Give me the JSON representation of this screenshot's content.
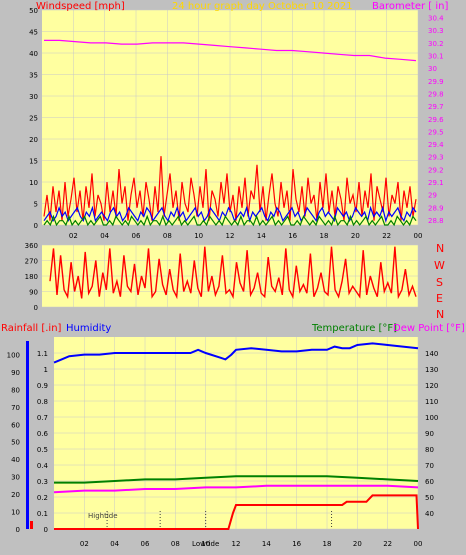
{
  "colors": {
    "background": "#c0c0c0",
    "plot_area": "#ffffa0",
    "grid": "#c8c8c8",
    "windspeed": "#ff0000",
    "gust": "#ff0000",
    "wind_avg": "#0000ff",
    "wind_low": "#008000",
    "barometer": "#ff00ff",
    "title": "#ffd700",
    "direction": "#ff0000",
    "humidity": "#0000ff",
    "temperature": "#008000",
    "dew_point": "#ff00ff",
    "rainfall": "#ff0000",
    "tide": "#404040"
  },
  "chart_data": [
    {
      "type": "line",
      "title": "24 hour graph day  October 10 2021",
      "ylabel_left": "Windspeed [mph]",
      "ylabel_right": "Barometer [ in]",
      "x_ticks": [
        "02",
        "04",
        "06",
        "08",
        "10",
        "12",
        "14",
        "16",
        "18",
        "20",
        "22",
        "00"
      ],
      "y_ticks_left": [
        "0",
        "5",
        "10",
        "15",
        "20",
        "25",
        "30",
        "35",
        "40",
        "45",
        "50"
      ],
      "y_ticks_right": [
        "28.8",
        "28.9",
        "29",
        "29.1",
        "29.2",
        "29.3",
        "29.4",
        "29.5",
        "29.6",
        "29.7",
        "29.8",
        "29.9",
        "30",
        "30.1",
        "30.2",
        "30.3",
        "30.4"
      ],
      "ylim_left": [
        0,
        50
      ],
      "ylim_right": [
        28.76,
        30.46
      ],
      "series": [
        {
          "key": "gust",
          "values": [
            2,
            7,
            1,
            9,
            3,
            8,
            1,
            10,
            2,
            6,
            11,
            3,
            8,
            1,
            9,
            4,
            12,
            2,
            7,
            5,
            1,
            10,
            3,
            8,
            2,
            13,
            5,
            9,
            1,
            7,
            11,
            4,
            8,
            2,
            10,
            6,
            1,
            9,
            3,
            16,
            2,
            7,
            12,
            4,
            8,
            1,
            10,
            5,
            3,
            11,
            7,
            2,
            9,
            4,
            13,
            1,
            8,
            6,
            2,
            10,
            5,
            12,
            3,
            7,
            1,
            9,
            4,
            11,
            2,
            8,
            6,
            14,
            3,
            9,
            1,
            7,
            12,
            5,
            2,
            10,
            4,
            8,
            1,
            13,
            6,
            3,
            9,
            2,
            11,
            5,
            7,
            1,
            10,
            4,
            12,
            3,
            8,
            2,
            9,
            6,
            1,
            11,
            5,
            7,
            3,
            10,
            2,
            8,
            4,
            12,
            1,
            9,
            6,
            3,
            11,
            2,
            7,
            5,
            10,
            1,
            8,
            4,
            9,
            2,
            6
          ]
        },
        {
          "key": "avg",
          "values": [
            1,
            2,
            3,
            1,
            2,
            4,
            2,
            3,
            1,
            2,
            3,
            4,
            2,
            1,
            3,
            2,
            4,
            1,
            2,
            3,
            2,
            1,
            3,
            4,
            2,
            3,
            1,
            2,
            4,
            3,
            2,
            1,
            3,
            2,
            4,
            3,
            1,
            2,
            3,
            4,
            2,
            1,
            3,
            2,
            4,
            2,
            3,
            1,
            2,
            3,
            4,
            2,
            3,
            1,
            2,
            4,
            3,
            2,
            1,
            3,
            2,
            4,
            3,
            1,
            2,
            3,
            2,
            4,
            1,
            3,
            2,
            3,
            4,
            2,
            1,
            3,
            2,
            4,
            3,
            1,
            2,
            3,
            4,
            2,
            3,
            1,
            2,
            4,
            3,
            2,
            1,
            3,
            4,
            2,
            3,
            2,
            1,
            4,
            3,
            2,
            3,
            1,
            2,
            4,
            3,
            2,
            3,
            1,
            4,
            2,
            3,
            2,
            4,
            1,
            3,
            2,
            3,
            4,
            2,
            1,
            3,
            2,
            4,
            3
          ]
        },
        {
          "key": "low",
          "values": [
            0,
            1,
            0,
            2,
            0,
            1,
            1,
            0,
            2,
            0,
            1,
            0,
            1,
            2,
            0,
            1,
            0,
            1,
            2,
            0,
            0,
            1,
            0,
            2,
            1,
            0,
            1,
            0,
            2,
            1,
            0,
            1,
            0,
            2,
            0,
            1,
            1,
            0,
            2,
            0,
            1,
            0,
            1,
            2,
            0,
            1,
            0,
            1,
            2,
            0,
            0,
            1,
            0,
            2,
            1,
            0,
            1,
            0,
            2,
            1,
            0,
            1,
            0,
            2,
            0,
            1,
            1,
            0,
            2,
            0,
            1,
            0,
            1,
            2,
            0,
            1,
            0,
            1,
            2,
            0,
            0,
            1,
            0,
            2,
            1,
            0,
            1,
            0,
            2,
            1,
            0,
            1,
            0,
            2,
            0,
            1,
            1,
            0,
            2,
            0,
            1,
            0,
            1,
            2,
            0,
            1,
            0,
            1,
            2,
            0,
            0,
            1,
            0,
            2,
            1,
            0,
            1,
            0,
            2,
            1
          ]
        },
        {
          "key": "barometer",
          "axis": "right",
          "values": [
            30.22,
            30.22,
            30.21,
            30.2,
            30.2,
            30.19,
            30.19,
            30.2,
            30.2,
            30.2,
            30.19,
            30.18,
            30.17,
            30.16,
            30.15,
            30.14,
            30.14,
            30.13,
            30.12,
            30.11,
            30.1,
            30.1,
            30.08,
            30.07,
            30.06
          ]
        }
      ]
    },
    {
      "type": "line",
      "ylabel_right": [
        "N",
        "W",
        "S",
        "E",
        "N"
      ],
      "y_ticks_left": [
        "360",
        "270",
        "180",
        "90",
        "0"
      ],
      "ylim": [
        0,
        360
      ],
      "series": [
        {
          "key": "direction",
          "values": [
            150,
            340,
            70,
            300,
            100,
            60,
            260,
            90,
            180,
            50,
            320,
            80,
            120,
            270,
            60,
            200,
            100,
            340,
            80,
            150,
            60,
            300,
            120,
            90,
            250,
            70,
            180,
            110,
            340,
            60,
            90,
            280,
            130,
            70,
            220,
            100,
            60,
            310,
            90,
            150,
            80,
            270,
            110,
            60,
            350,
            90,
            180,
            70,
            120,
            300,
            80,
            100,
            60,
            260,
            140,
            90,
            330,
            70,
            110,
            200,
            80,
            60,
            290,
            120,
            90,
            170,
            70,
            340,
            100,
            60,
            240,
            90,
            130,
            80,
            310,
            60,
            110,
            200,
            90,
            70,
            350,
            100,
            60,
            150,
            280,
            80,
            120,
            90,
            60,
            330,
            70,
            180,
            110,
            60,
            260,
            90,
            140,
            80,
            350,
            60,
            100,
            220,
            70,
            120,
            60
          ]
        }
      ]
    },
    {
      "type": "line",
      "ylabel_left": "Rainfall [.in]",
      "ylabel_left2": "Humidity",
      "ylabel_right": "Temperature [°F]",
      "ylabel_right2": "Dew Point [°F]",
      "y_ticks_left_rain": [
        "0",
        "0.1",
        "0.2",
        "0.3",
        "0.4",
        "0.5",
        "0.6",
        "0.7",
        "0.8",
        "0.9",
        "1",
        "1.1"
      ],
      "y_ticks_left_hum": [
        "0",
        "10",
        "20",
        "30",
        "40",
        "50",
        "60",
        "70",
        "80",
        "90",
        "100"
      ],
      "y_ticks_right": [
        "40",
        "50",
        "60",
        "70",
        "80",
        "90",
        "100",
        "110",
        "120",
        "130",
        "140"
      ],
      "x_ticks": [
        "02",
        "04",
        "06",
        "08",
        "10",
        "Lowtide",
        "12",
        "14",
        "16",
        "18",
        "20",
        "22",
        "00"
      ],
      "annotations": [
        "Hightide",
        "Lowtide"
      ],
      "tide_marks_hour": [
        3.5,
        7,
        10,
        18.3
      ],
      "ylim_rain": [
        0,
        1.2
      ],
      "ylim_temp": [
        30,
        150
      ],
      "series": [
        {
          "key": "humidity",
          "axis": "left",
          "x": [
            0,
            0.5,
            1,
            2,
            3,
            4,
            5,
            6,
            7,
            8,
            9,
            9.5,
            10,
            11,
            11.3,
            11.7,
            12,
            13,
            14,
            15,
            16,
            17,
            18,
            18.5,
            19,
            19.5,
            20,
            21,
            22,
            23,
            24
          ],
          "values": [
            1.04,
            1.06,
            1.08,
            1.09,
            1.09,
            1.1,
            1.1,
            1.1,
            1.1,
            1.1,
            1.1,
            1.12,
            1.1,
            1.07,
            1.06,
            1.09,
            1.12,
            1.13,
            1.12,
            1.11,
            1.11,
            1.12,
            1.12,
            1.14,
            1.13,
            1.13,
            1.15,
            1.16,
            1.15,
            1.14,
            1.13
          ]
        },
        {
          "key": "temperature",
          "axis": "right",
          "x": [
            0,
            2,
            4,
            6,
            8,
            10,
            12,
            14,
            16,
            18,
            20,
            22,
            24
          ],
          "values": [
            59,
            59,
            60,
            61,
            61,
            62,
            63,
            63,
            63,
            63,
            62,
            61,
            60
          ]
        },
        {
          "key": "dew_point",
          "axis": "right",
          "x": [
            0,
            2,
            4,
            6,
            8,
            10,
            12,
            14,
            16,
            18,
            20,
            22,
            24
          ],
          "values": [
            53,
            54,
            54,
            55,
            55,
            56,
            56,
            57,
            57,
            57,
            57,
            57,
            56
          ]
        },
        {
          "key": "rainfall",
          "axis": "left",
          "x": [
            0,
            11.5,
            11.8,
            12,
            19,
            19.3,
            20.6,
            21,
            23.9,
            24
          ],
          "values": [
            0,
            0,
            0.1,
            0.15,
            0.15,
            0.17,
            0.17,
            0.21,
            0.21,
            0
          ]
        }
      ]
    }
  ]
}
